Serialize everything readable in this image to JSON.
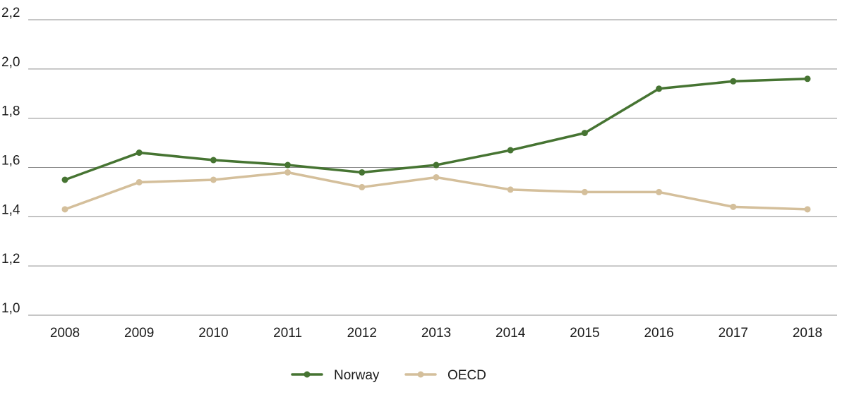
{
  "chart_data": {
    "type": "line",
    "title": "",
    "xlabel": "",
    "ylabel": "",
    "x": [
      "2008",
      "2009",
      "2010",
      "2011",
      "2012",
      "2013",
      "2014",
      "2015",
      "2016",
      "2017",
      "2018"
    ],
    "ylim": [
      1.0,
      2.2
    ],
    "yticks": [
      "1,0",
      "1,2",
      "1,4",
      "1,6",
      "1,8",
      "2,0",
      "2,2"
    ],
    "ytick_values": [
      1.0,
      1.2,
      1.4,
      1.6,
      1.8,
      2.0,
      2.2
    ],
    "grid": "horizontal",
    "legend_position": "bottom-center",
    "series": [
      {
        "name": "Norway",
        "color": "#467432",
        "values": [
          1.55,
          1.66,
          1.63,
          1.61,
          1.58,
          1.61,
          1.67,
          1.74,
          1.92,
          1.95,
          1.96
        ]
      },
      {
        "name": "OECD",
        "color": "#d4bf9b",
        "values": [
          1.43,
          1.54,
          1.55,
          1.58,
          1.52,
          1.56,
          1.51,
          1.5,
          1.5,
          1.44,
          1.43
        ]
      }
    ]
  }
}
